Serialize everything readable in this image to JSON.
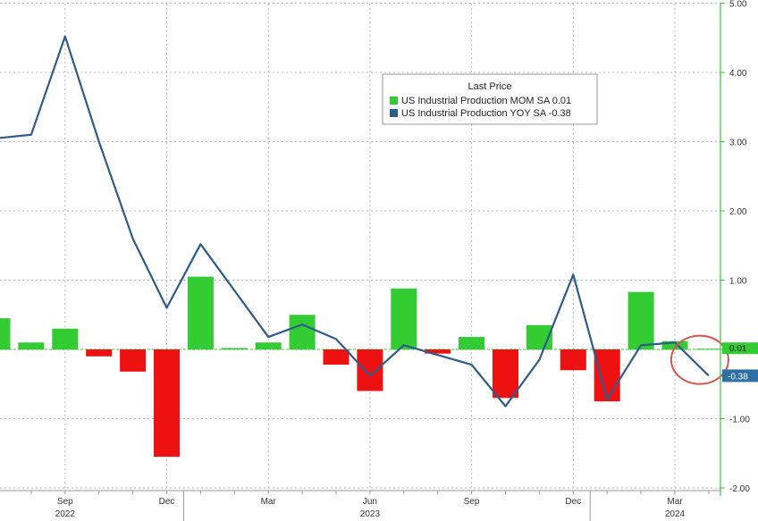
{
  "chart_data": {
    "type": "bar+line",
    "x_months": [
      "2022-07",
      "2022-08",
      "2022-09",
      "2022-10",
      "2022-11",
      "2022-12",
      "2023-01",
      "2023-02",
      "2023-03",
      "2023-04",
      "2023-05",
      "2023-06",
      "2023-07",
      "2023-08",
      "2023-09",
      "2023-10",
      "2023-11",
      "2023-12",
      "2024-01",
      "2024-02",
      "2024-03",
      "2024-04"
    ],
    "series": [
      {
        "name": "US Industrial Production MOM SA",
        "kind": "bar",
        "values": [
          0.45,
          0.1,
          0.3,
          -0.1,
          -0.32,
          -1.55,
          1.05,
          0.02,
          0.1,
          0.5,
          -0.22,
          -0.6,
          0.88,
          -0.06,
          0.18,
          -0.7,
          0.35,
          -0.3,
          -0.75,
          0.83,
          0.12,
          0.01
        ],
        "last_value": "0.01"
      },
      {
        "name": "US Industrial Production YOY SA",
        "kind": "line",
        "values": [
          3.05,
          3.1,
          4.52,
          3.0,
          1.6,
          0.6,
          1.52,
          0.85,
          0.18,
          0.36,
          0.15,
          -0.38,
          0.06,
          -0.08,
          -0.22,
          -0.82,
          -0.15,
          1.08,
          -0.72,
          0.06,
          0.1,
          -0.38
        ],
        "last_value": "-0.38"
      }
    ],
    "x_tick_labels": [
      {
        "month": "2022-09",
        "label": "Sep"
      },
      {
        "month": "2022-12",
        "label": "Dec"
      },
      {
        "month": "2023-03",
        "label": "Mar"
      },
      {
        "month": "2023-06",
        "label": "Jun"
      },
      {
        "month": "2023-09",
        "label": "Sep"
      },
      {
        "month": "2023-12",
        "label": "Dec"
      },
      {
        "month": "2024-03",
        "label": "Mar"
      }
    ],
    "x_year_labels": [
      {
        "month": "2022-09",
        "label": "2022"
      },
      {
        "month": "2023-06",
        "label": "2023"
      },
      {
        "month": "2024-03",
        "label": "2024"
      }
    ],
    "y_ticks": [
      -2,
      -1,
      0,
      1,
      2,
      3,
      4,
      5
    ],
    "y_tick_labels": [
      "-2.00",
      "-1.00",
      "",
      "1.00",
      "2.00",
      "3.00",
      "4.00",
      "5.00"
    ],
    "ylim": [
      -2,
      5
    ],
    "grid": true,
    "legend": {
      "title": "Last Price",
      "placement": "top-center",
      "items": [
        {
          "label": "US Industrial Production MOM SA  0.01",
          "color": "#33cc33"
        },
        {
          "label": "US Industrial Production YOY SA  -0.38",
          "color": "#2e5c8a"
        }
      ]
    },
    "badges": [
      {
        "text": "0.01",
        "color": "#33cc33"
      },
      {
        "text": "-0.38",
        "color": "#2e6fa8"
      }
    ],
    "colors": {
      "positive_bar": "#33cc33",
      "negative_bar": "#ee1111",
      "line": "#2e5c8a",
      "axis": "#33cc33",
      "highlight_circle": "#d9534f"
    }
  }
}
